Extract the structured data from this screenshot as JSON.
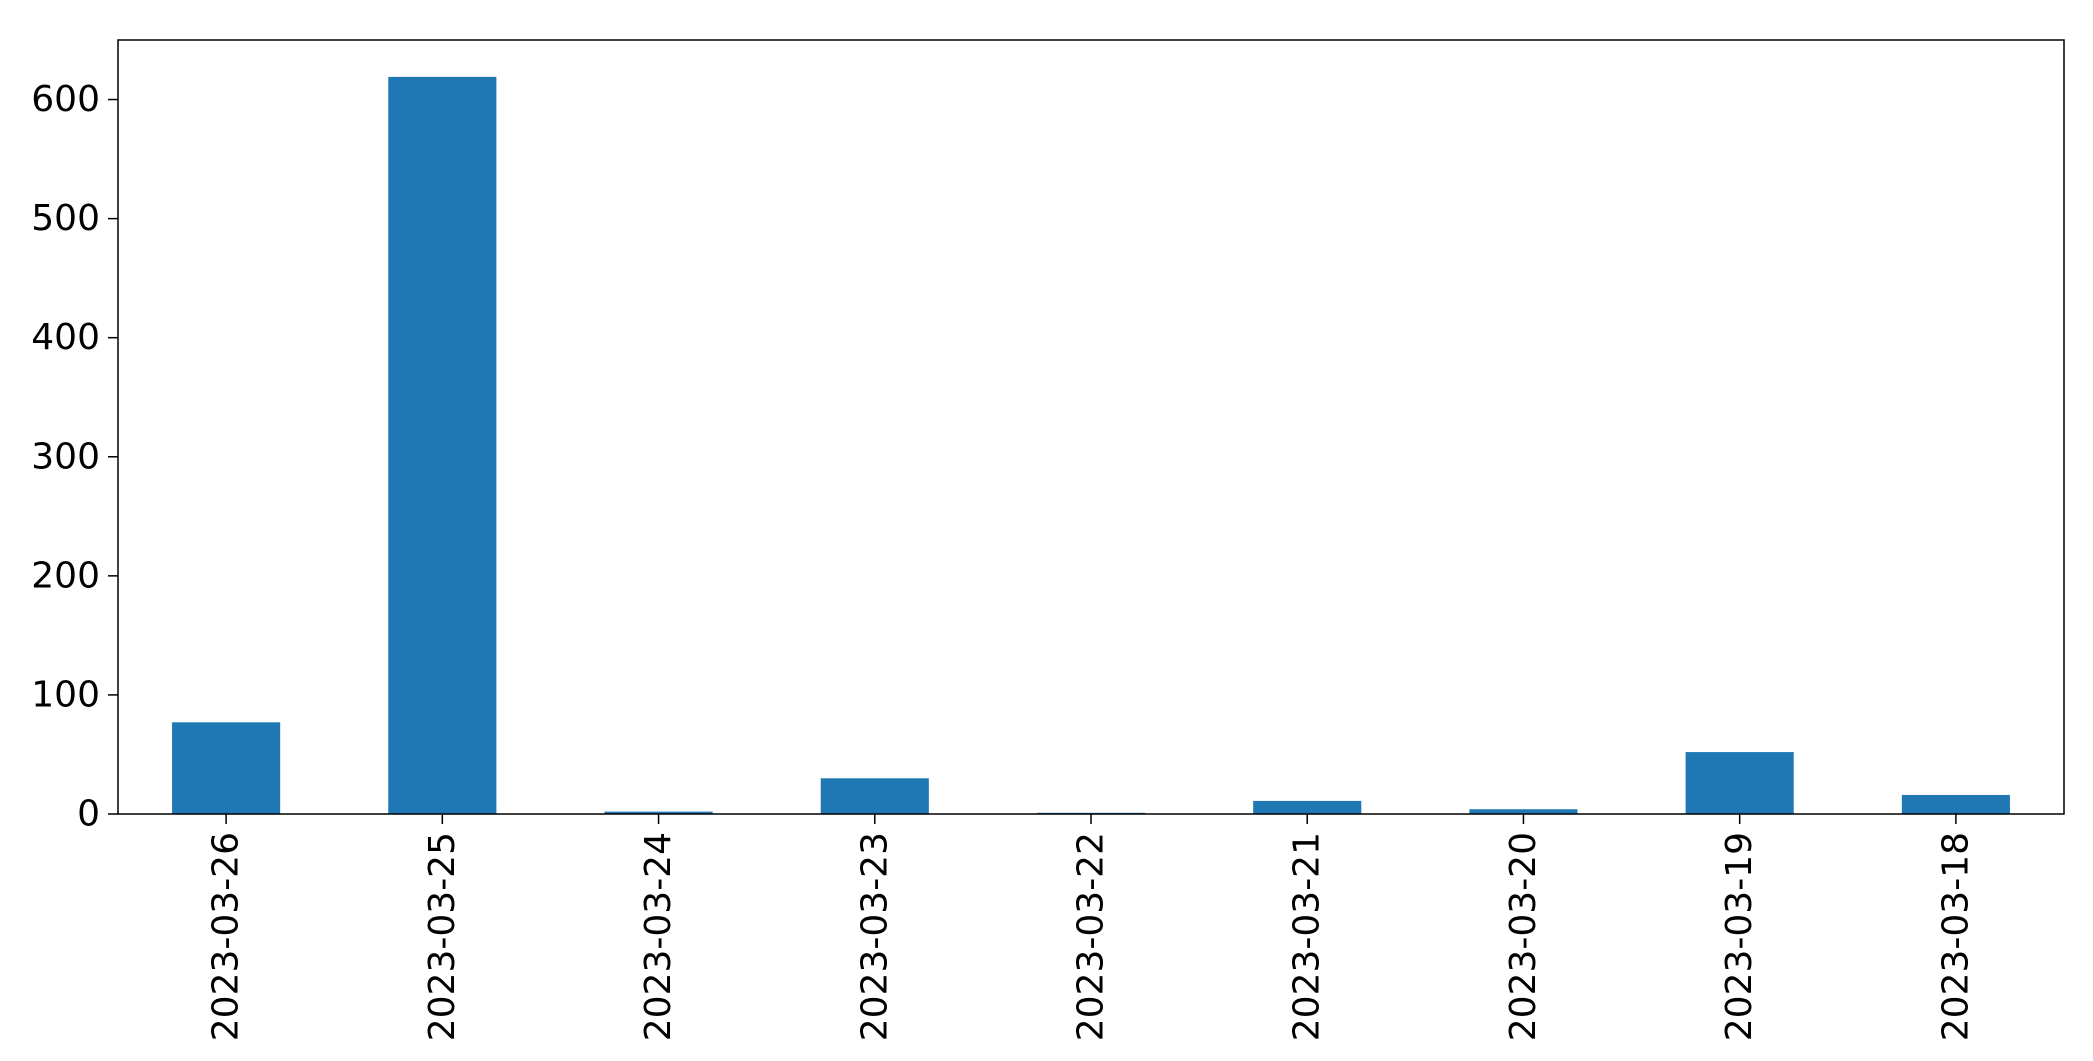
{
  "chart_data": {
    "type": "bar",
    "title": "",
    "xlabel": "",
    "ylabel": "",
    "categories": [
      "2023-03-26",
      "2023-03-25",
      "2023-03-24",
      "2023-03-23",
      "2023-03-22",
      "2023-03-21",
      "2023-03-20",
      "2023-03-19",
      "2023-03-18"
    ],
    "values": [
      77,
      619,
      2,
      30,
      1,
      11,
      4,
      52,
      16
    ],
    "ylim": [
      0,
      650
    ],
    "yticks": [
      0,
      100,
      200,
      300,
      400,
      500,
      600
    ],
    "ytick_labels": [
      "0",
      "100",
      "200",
      "300",
      "400",
      "500",
      "600"
    ],
    "grid": false,
    "legend": "none",
    "bar_color": "#1f77b4",
    "axis_color": "#000000"
  }
}
